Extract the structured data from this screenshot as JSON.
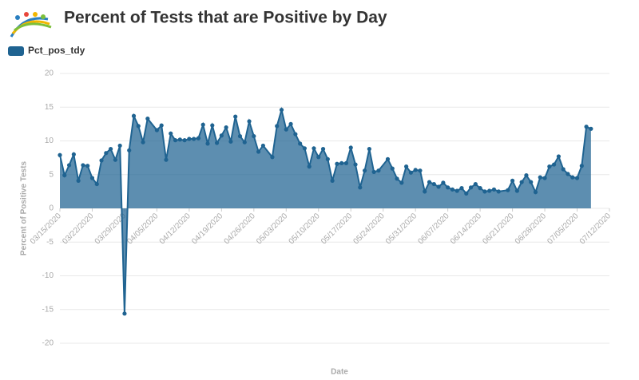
{
  "chart_data": {
    "type": "area",
    "title": "Percent of Tests that are Positive by Day",
    "x_label": "Date",
    "y_label": "Percent of Positive Tests",
    "series": [
      {
        "name": "Pct_pos_tdy",
        "color": "#1f6391",
        "x": [
          "03/15/2020",
          "03/16/2020",
          "03/17/2020",
          "03/18/2020",
          "03/19/2020",
          "03/20/2020",
          "03/21/2020",
          "03/22/2020",
          "03/23/2020",
          "03/24/2020",
          "03/25/2020",
          "03/26/2020",
          "03/27/2020",
          "03/28/2020",
          "03/29/2020",
          "03/30/2020",
          "03/31/2020",
          "04/01/2020",
          "04/02/2020",
          "04/03/2020",
          "04/05/2020",
          "04/06/2020",
          "04/07/2020",
          "04/08/2020",
          "04/09/2020",
          "04/10/2020",
          "04/11/2020",
          "04/12/2020",
          "04/13/2020",
          "04/14/2020",
          "04/15/2020",
          "04/16/2020",
          "04/17/2020",
          "04/18/2020",
          "04/19/2020",
          "04/20/2020",
          "04/21/2020",
          "04/22/2020",
          "04/23/2020",
          "04/24/2020",
          "04/25/2020",
          "04/26/2020",
          "04/27/2020",
          "04/28/2020",
          "04/30/2020",
          "05/01/2020",
          "05/02/2020",
          "05/03/2020",
          "05/04/2020",
          "05/05/2020",
          "05/06/2020",
          "05/07/2020",
          "05/08/2020",
          "05/09/2020",
          "05/10/2020",
          "05/11/2020",
          "05/12/2020",
          "05/13/2020",
          "05/14/2020",
          "05/15/2020",
          "05/16/2020",
          "05/17/2020",
          "05/18/2020",
          "05/19/2020",
          "05/20/2020",
          "05/21/2020",
          "05/22/2020",
          "05/23/2020",
          "05/25/2020",
          "05/26/2020",
          "05/27/2020",
          "05/28/2020",
          "05/29/2020",
          "05/30/2020",
          "05/31/2020",
          "06/01/2020",
          "06/02/2020",
          "06/03/2020",
          "06/04/2020",
          "06/05/2020",
          "06/06/2020",
          "06/07/2020",
          "06/08/2020",
          "06/09/2020",
          "06/10/2020",
          "06/11/2020",
          "06/12/2020",
          "06/13/2020",
          "06/14/2020",
          "06/15/2020",
          "06/16/2020",
          "06/17/2020",
          "06/18/2020",
          "06/20/2020",
          "06/21/2020",
          "06/22/2020",
          "06/23/2020",
          "06/24/2020",
          "06/25/2020",
          "06/26/2020",
          "06/27/2020",
          "06/28/2020",
          "06/29/2020",
          "06/30/2020",
          "07/01/2020",
          "07/02/2020",
          "07/03/2020",
          "07/04/2020",
          "07/05/2020",
          "07/06/2020",
          "07/07/2020",
          "07/08/2020"
        ],
        "values": [
          7.9,
          4.9,
          6.4,
          8.0,
          4.1,
          6.4,
          6.3,
          4.5,
          3.6,
          7.1,
          8.2,
          8.8,
          7.2,
          9.3,
          -15.6,
          8.6,
          13.7,
          12.2,
          9.8,
          13.3,
          11.6,
          12.3,
          7.2,
          11.1,
          10.1,
          10.2,
          10.1,
          10.3,
          10.3,
          10.4,
          12.4,
          9.6,
          12.3,
          9.7,
          10.8,
          12.0,
          9.9,
          13.6,
          10.7,
          9.8,
          12.9,
          10.7,
          8.4,
          9.3,
          7.6,
          12.2,
          14.6,
          11.7,
          12.5,
          11.0,
          9.6,
          8.9,
          6.2,
          8.9,
          7.6,
          8.8,
          7.3,
          4.1,
          6.6,
          6.7,
          6.7,
          9.0,
          6.5,
          3.1,
          5.6,
          8.8,
          5.4,
          5.6,
          7.3,
          5.9,
          4.4,
          3.8,
          6.2,
          5.3,
          5.7,
          5.6,
          2.5,
          3.9,
          3.6,
          3.2,
          3.8,
          3.1,
          2.8,
          2.6,
          3.0,
          2.2,
          3.1,
          3.6,
          3.0,
          2.5,
          2.6,
          2.8,
          2.5,
          2.7,
          4.1,
          2.6,
          3.9,
          4.9,
          3.9,
          2.4,
          4.6,
          4.5,
          6.2,
          6.5,
          7.7,
          5.8,
          5.1,
          4.6,
          4.5,
          6.3,
          12.1,
          11.8
        ]
      }
    ],
    "xlim": [
      "03/15/2020",
      "07/12/2020"
    ],
    "xticks": [
      "03/15/2020",
      "03/22/2020",
      "03/29/2020",
      "04/05/2020",
      "04/12/2020",
      "04/19/2020",
      "04/26/2020",
      "05/03/2020",
      "05/10/2020",
      "05/17/2020",
      "05/24/2020",
      "05/31/2020",
      "06/07/2020",
      "06/14/2020",
      "06/21/2020",
      "06/28/2020",
      "07/05/2020",
      "07/12/2020"
    ],
    "ylim": [
      -20,
      20
    ],
    "yticks": [
      20,
      15,
      10,
      5,
      0,
      -5,
      -10,
      -15,
      -20
    ],
    "grid": true
  }
}
